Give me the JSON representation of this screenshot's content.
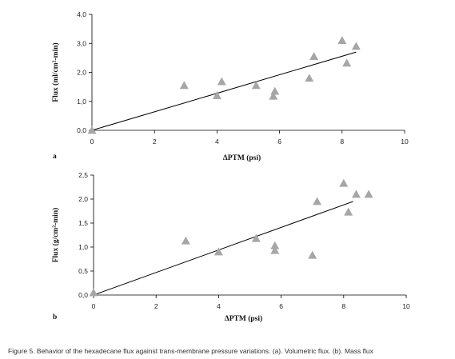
{
  "caption": "Figure 5. Behavior of the hexadecane flux against trans-membrane pressure variations. (a). Volumetric flux. (b). Mass flux",
  "marker_color": "#a6a6a6",
  "line_color": "#000000",
  "chart_data": [
    {
      "type": "scatter",
      "panel_label": "a",
      "title": "",
      "xlabel": "ΔPTM (psi)",
      "ylabel": "Flux (ml/cm²-min)",
      "xlim": [
        0,
        10
      ],
      "ylim": [
        0,
        4
      ],
      "xticks": [
        0,
        2,
        4,
        6,
        8,
        10
      ],
      "xtick_labels": [
        "0",
        "2",
        "4",
        "6",
        "8",
        "10"
      ],
      "yticks": [
        0,
        1,
        2,
        3,
        4
      ],
      "ytick_labels": [
        "0,0",
        "1,0",
        "2,0",
        "3,0",
        "4,0"
      ],
      "grid": false,
      "points": {
        "x": [
          0.0,
          2.95,
          4.0,
          4.15,
          5.25,
          5.8,
          5.85,
          6.95,
          7.1,
          8.0,
          8.15,
          8.45
        ],
        "y": [
          0.0,
          1.55,
          1.2,
          1.68,
          1.55,
          1.18,
          1.35,
          1.8,
          2.55,
          3.1,
          2.32,
          2.9
        ]
      },
      "fit_line": {
        "x": [
          0.0,
          8.45
        ],
        "y": [
          0.0,
          2.7
        ]
      }
    },
    {
      "type": "scatter",
      "panel_label": "b",
      "title": "",
      "xlabel": "ΔPTM (psi)",
      "ylabel": "Flux (g/cm²-min)",
      "xlim": [
        0,
        10
      ],
      "ylim": [
        0,
        2.5
      ],
      "xticks": [
        0,
        2,
        4,
        6,
        8,
        10
      ],
      "xtick_labels": [
        "0",
        "2",
        "4",
        "6",
        "8",
        "10"
      ],
      "yticks": [
        0,
        0.5,
        1.0,
        1.5,
        2.0,
        2.5
      ],
      "ytick_labels": [
        "0,0",
        "0,5",
        "1,0",
        "1,5",
        "2,0",
        "2,5"
      ],
      "grid": false,
      "points": {
        "x": [
          0.0,
          2.95,
          4.0,
          5.2,
          5.8,
          5.8,
          7.0,
          7.15,
          8.0,
          8.15,
          8.4,
          8.8
        ],
        "y": [
          0.05,
          1.13,
          0.9,
          1.18,
          1.03,
          0.93,
          0.83,
          1.95,
          2.33,
          1.73,
          2.1,
          2.1
        ]
      },
      "fit_line": {
        "x": [
          0.0,
          8.3
        ],
        "y": [
          0.0,
          1.95
        ]
      }
    }
  ]
}
